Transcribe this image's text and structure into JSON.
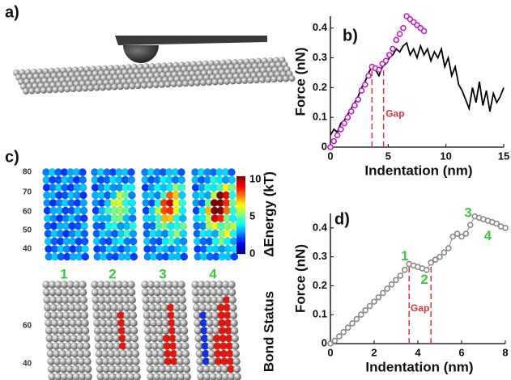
{
  "panel_labels": {
    "a": "a)",
    "c": "c)"
  },
  "panel_c": {
    "top_yticks": [
      "80",
      "70",
      "60",
      "50",
      "40"
    ],
    "colorbar_ticks": [
      "10",
      "5",
      "0"
    ],
    "colorbar_label": "ΔEnergy (kT)",
    "frame_labels": [
      "1",
      "2",
      "3",
      "4"
    ],
    "bottom_yticks": [
      "60",
      "40"
    ],
    "bottom_label": "Bond Status"
  },
  "chart_data": [
    {
      "type": "line",
      "panel_label": "b)",
      "xlabel": "Indentation (nm)",
      "ylabel": "Force (nN)",
      "xlim": [
        0,
        15
      ],
      "xticks": [
        0,
        5,
        10,
        15
      ],
      "ylim": [
        0,
        0.44
      ],
      "yticks": [
        0,
        0.1,
        0.2,
        0.3,
        0.4
      ],
      "series": [
        {
          "style": "line",
          "color": "#000000",
          "x": [
            0,
            0.3,
            0.6,
            0.9,
            1.2,
            1.5,
            1.8,
            2.1,
            2.4,
            2.7,
            3.0,
            3.3,
            3.6,
            3.9,
            4.2,
            4.5,
            4.8,
            5.1,
            5.4,
            5.7,
            6.0,
            6.3,
            6.6,
            6.9,
            7.2,
            7.5,
            7.8,
            8.1,
            8.4,
            8.7,
            9.0,
            9.3,
            9.6,
            9.9,
            10.2,
            10.5,
            10.8,
            11.1,
            11.4,
            11.7,
            12.0,
            12.3,
            12.6,
            12.9,
            13.2,
            13.5,
            13.8,
            14.1,
            14.4,
            14.7,
            15.0
          ],
          "values": [
            0.04,
            0.06,
            0.05,
            0.08,
            0.09,
            0.11,
            0.13,
            0.15,
            0.17,
            0.2,
            0.22,
            0.25,
            0.27,
            0.26,
            0.24,
            0.27,
            0.28,
            0.3,
            0.31,
            0.33,
            0.32,
            0.34,
            0.35,
            0.31,
            0.33,
            0.3,
            0.34,
            0.31,
            0.33,
            0.29,
            0.32,
            0.3,
            0.33,
            0.27,
            0.3,
            0.24,
            0.27,
            0.21,
            0.19,
            0.16,
            0.13,
            0.2,
            0.15,
            0.22,
            0.14,
            0.19,
            0.12,
            0.18,
            0.15,
            0.17,
            0.2
          ]
        },
        {
          "style": "markers",
          "color": "#c020c8",
          "x": [
            0,
            0.3,
            0.6,
            0.9,
            1.2,
            1.5,
            1.8,
            2.1,
            2.4,
            2.7,
            3.0,
            3.3,
            3.6,
            3.9,
            4.2,
            4.5,
            4.8,
            5.1,
            5.4,
            5.7,
            6.0,
            6.3,
            6.6,
            6.9,
            7.2,
            7.5,
            7.8,
            8.1
          ],
          "values": [
            0,
            0.02,
            0.04,
            0.06,
            0.08,
            0.1,
            0.12,
            0.14,
            0.16,
            0.19,
            0.21,
            0.24,
            0.27,
            0.265,
            0.26,
            0.28,
            0.29,
            0.31,
            0.33,
            0.36,
            0.38,
            0.4,
            0.44,
            0.43,
            0.42,
            0.41,
            0.4,
            0.39
          ]
        }
      ],
      "vlines": [
        {
          "x": 3.6,
          "y": 0.27
        },
        {
          "x": 4.6,
          "y": 0.27
        }
      ],
      "annotations": [
        {
          "text": "Gap",
          "x": 5.6,
          "y": 0.11,
          "color": "#e03040"
        }
      ]
    },
    {
      "type": "line",
      "panel_label": "d)",
      "xlabel": "Indentation (nm)",
      "ylabel": "Force (nN)",
      "xlim": [
        0,
        8
      ],
      "xticks": [
        0,
        2,
        4,
        6,
        8
      ],
      "ylim": [
        0,
        0.45
      ],
      "yticks": [
        0,
        0.1,
        0.2,
        0.3,
        0.4
      ],
      "series": [
        {
          "style": "line-markers",
          "color": "#8a8a8a",
          "x": [
            0,
            0.2,
            0.4,
            0.6,
            0.8,
            1.0,
            1.2,
            1.4,
            1.6,
            1.8,
            2.0,
            2.2,
            2.4,
            2.6,
            2.8,
            3.0,
            3.2,
            3.4,
            3.6,
            3.8,
            4.0,
            4.2,
            4.4,
            4.6,
            4.8,
            5.0,
            5.2,
            5.4,
            5.6,
            5.8,
            6.0,
            6.2,
            6.4,
            6.6,
            6.8,
            7.0,
            7.2,
            7.4,
            7.6,
            7.8,
            8.0
          ],
          "values": [
            0,
            0.01,
            0.025,
            0.04,
            0.055,
            0.07,
            0.085,
            0.1,
            0.115,
            0.13,
            0.145,
            0.16,
            0.175,
            0.19,
            0.205,
            0.22,
            0.235,
            0.255,
            0.275,
            0.27,
            0.265,
            0.26,
            0.255,
            0.28,
            0.29,
            0.3,
            0.315,
            0.33,
            0.37,
            0.38,
            0.37,
            0.38,
            0.41,
            0.44,
            0.435,
            0.43,
            0.425,
            0.42,
            0.415,
            0.405,
            0.4
          ]
        }
      ],
      "vlines": [
        {
          "x": 3.6,
          "y": 0.28
        },
        {
          "x": 4.6,
          "y": 0.28
        }
      ],
      "annotations": [
        {
          "text": "1",
          "x": 3.4,
          "y": 0.3,
          "color": "#3cc83c"
        },
        {
          "text": "2",
          "x": 4.3,
          "y": 0.22,
          "color": "#3cc83c"
        },
        {
          "text": "3",
          "x": 6.3,
          "y": 0.45,
          "color": "#3cc83c"
        },
        {
          "text": "4",
          "x": 7.2,
          "y": 0.37,
          "color": "#3cc83c"
        },
        {
          "text": "Gap",
          "x": 4.1,
          "y": 0.12,
          "color": "#e03040"
        }
      ]
    }
  ]
}
